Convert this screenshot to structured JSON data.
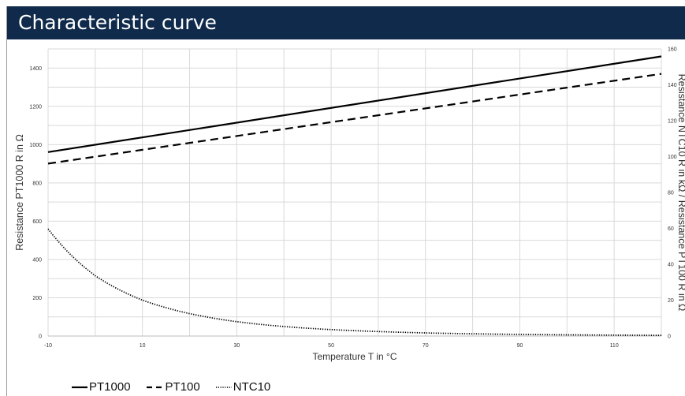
{
  "header": {
    "title": "Characteristic curve"
  },
  "chart_data": {
    "type": "line",
    "title": "Characteristic curve",
    "xlabel": "Temperature T in °C",
    "ylabel": "Resistance PT1000 R in Ω",
    "y2label": "Resistance NTC10 R in kΩ / Resistance PT100 R in Ω",
    "xlim": [
      -10,
      120
    ],
    "ylim": [
      0,
      1500
    ],
    "y2lim": [
      0,
      160
    ],
    "x_ticks": [
      -10,
      10,
      30,
      50,
      70,
      90,
      110
    ],
    "y_ticks": [
      0,
      200,
      400,
      600,
      800,
      1000,
      1200,
      1400
    ],
    "y2_ticks": [
      0,
      20,
      40,
      60,
      80,
      100,
      120,
      140,
      160
    ],
    "grid": true,
    "legend_position": "bottom-left",
    "series": [
      {
        "name": "PT1000",
        "axis": "left",
        "style": "solid",
        "color": "#000000",
        "x": [
          -10,
          120
        ],
        "y": [
          961,
          1461
        ]
      },
      {
        "name": "PT100",
        "axis": "right",
        "style": "dashed",
        "color": "#000000",
        "x": [
          -10,
          120
        ],
        "y": [
          96.1,
          146.1
        ]
      },
      {
        "name": "NTC10",
        "axis": "right",
        "style": "dotted",
        "color": "#000000",
        "x": [
          -10,
          0,
          10,
          20,
          30,
          40,
          50,
          60,
          70,
          80,
          90,
          100,
          110,
          120
        ],
        "y": [
          59.7,
          33.6,
          20.0,
          12.5,
          8.0,
          5.3,
          3.6,
          2.5,
          1.75,
          1.25,
          0.92,
          0.68,
          0.51,
          0.39
        ]
      }
    ]
  }
}
